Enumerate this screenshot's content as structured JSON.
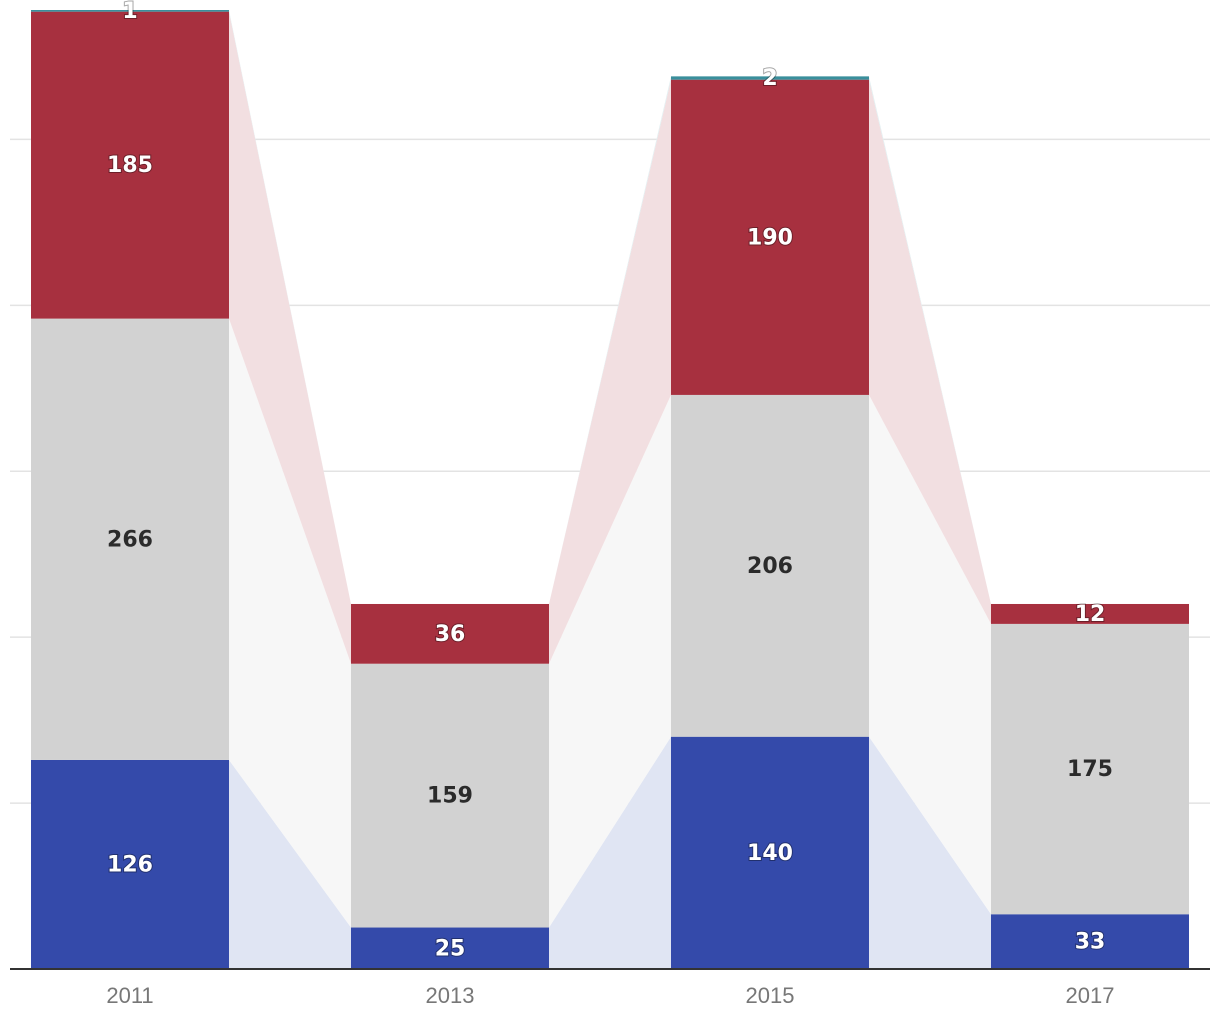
{
  "chart_data": {
    "type": "bar",
    "stacked": true,
    "categories": [
      "2011",
      "2013",
      "2015",
      "2017"
    ],
    "series": [
      {
        "key": "blue",
        "values": [
          126,
          25,
          140,
          33
        ],
        "color": "#344aaa",
        "band_color": "#e0e5f3",
        "label_style": "light"
      },
      {
        "key": "gray",
        "values": [
          266,
          159,
          206,
          175
        ],
        "color": "#d2d2d2",
        "band_color": "#f7f7f7",
        "label_style": "dark"
      },
      {
        "key": "red",
        "values": [
          185,
          36,
          190,
          12
        ],
        "color": "#a7303f",
        "band_color": "#f2dfe1",
        "label_style": "light"
      },
      {
        "key": "teal",
        "values": [
          1,
          0,
          2,
          0
        ],
        "color": "#3a8f9c",
        "band_color": "#e2f0f2",
        "label_style": "light"
      }
    ],
    "ylim": [
      0,
      578
    ],
    "gridlines": [
      100,
      200,
      300,
      400,
      500
    ],
    "grid": true,
    "legend": "none",
    "title": "",
    "xlabel": "",
    "ylabel": ""
  }
}
